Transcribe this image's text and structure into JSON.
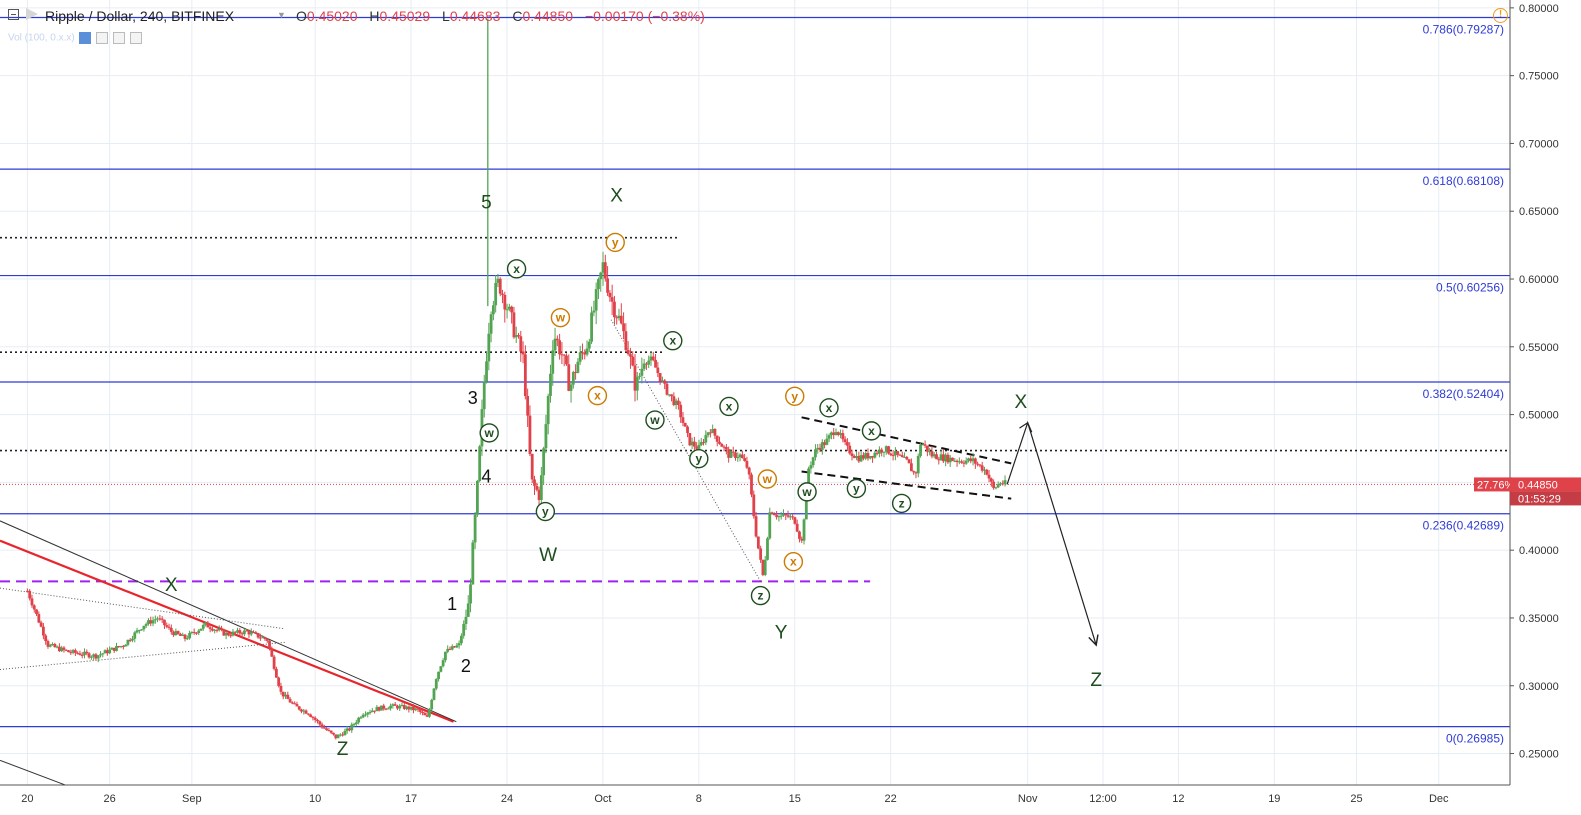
{
  "header": {
    "symbol": "Ripple / Dollar, 240, BITFINEX",
    "open_label": "O",
    "open": "0.45020",
    "high_label": "H",
    "high": "0.45029",
    "low_label": "L",
    "low": "0.44683",
    "close_label": "C",
    "close": "0.44850",
    "change": "−0.00170 (−0.38%)"
  },
  "indicator": {
    "text": "Vol (100, 0.x.x)"
  },
  "colors": {
    "up": "#52a352",
    "down": "#e0424a",
    "fib": "#2f3bd6",
    "trend_red": "#e8252d",
    "support_purple": "#a020f0",
    "wave_green": "#1e4d1e",
    "wave_orange": "#cc7a00",
    "grid": "#e6edf3",
    "price_tag": "#e0424a"
  },
  "price_tags": {
    "current": "0.44850",
    "percent": "27.76%",
    "countdown": "01:53:29"
  },
  "chart_data": {
    "type": "candlestick",
    "symbol": "XRPUSD",
    "interval": "240",
    "exchange": "BITFINEX",
    "y_axis": {
      "range": [
        0.2268,
        0.8058
      ],
      "ticks": [
        "0.80000",
        "0.75000",
        "0.70000",
        "0.65000",
        "0.60000",
        "0.55000",
        "0.50000",
        "0.45000",
        "0.40000",
        "0.35000",
        "0.30000",
        "0.25000"
      ],
      "tick_values": [
        0.8,
        0.75,
        0.7,
        0.65,
        0.6,
        0.55,
        0.5,
        0.45,
        0.4,
        0.35,
        0.3,
        0.25
      ]
    },
    "x_axis": {
      "ticks": [
        {
          "label": "20",
          "t": 0
        },
        {
          "label": "26",
          "t": 6
        },
        {
          "label": "Sep",
          "t": 12
        },
        {
          "label": "10",
          "t": 21
        },
        {
          "label": "17",
          "t": 28
        },
        {
          "label": "24",
          "t": 35
        },
        {
          "label": "Oct",
          "t": 42
        },
        {
          "label": "8",
          "t": 49
        },
        {
          "label": "15",
          "t": 56
        },
        {
          "label": "22",
          "t": 63
        },
        {
          "label": "Nov",
          "t": 73
        },
        {
          "label": "12:00",
          "t": 78.5
        },
        {
          "label": "12",
          "t": 84
        },
        {
          "label": "19",
          "t": 91
        },
        {
          "label": "25",
          "t": 97
        },
        {
          "label": "Dec",
          "t": 103
        }
      ],
      "t_range": [
        -2,
        108.2
      ]
    },
    "price_path": [
      [
        0,
        0.37
      ],
      [
        1.5,
        0.33
      ],
      [
        3,
        0.325
      ],
      [
        5,
        0.322
      ],
      [
        7,
        0.33
      ],
      [
        8.5,
        0.345
      ],
      [
        9.5,
        0.35
      ],
      [
        10.5,
        0.34
      ],
      [
        11.5,
        0.335
      ],
      [
        13,
        0.345
      ],
      [
        14.5,
        0.338
      ],
      [
        16,
        0.34
      ],
      [
        17.5,
        0.334
      ],
      [
        18.5,
        0.295
      ],
      [
        19.5,
        0.285
      ],
      [
        20.5,
        0.28
      ],
      [
        21.5,
        0.27
      ],
      [
        22.5,
        0.262
      ],
      [
        23.5,
        0.268
      ],
      [
        24.5,
        0.28
      ],
      [
        25.5,
        0.283
      ],
      [
        26.5,
        0.285
      ],
      [
        27.5,
        0.284
      ],
      [
        28.5,
        0.282
      ],
      [
        29.2,
        0.276
      ],
      [
        29.8,
        0.305
      ],
      [
        30.5,
        0.325
      ],
      [
        31.5,
        0.33
      ],
      [
        32.2,
        0.36
      ],
      [
        32.8,
        0.44
      ],
      [
        33.3,
        0.52
      ],
      [
        33.8,
        0.58
      ],
      [
        34.4,
        0.598
      ],
      [
        35.0,
        0.58
      ],
      [
        35.6,
        0.56
      ],
      [
        36.2,
        0.54
      ],
      [
        36.8,
        0.45
      ],
      [
        37.4,
        0.44
      ],
      [
        37.9,
        0.5
      ],
      [
        38.4,
        0.56
      ],
      [
        39.0,
        0.545
      ],
      [
        39.6,
        0.52
      ],
      [
        40.2,
        0.54
      ],
      [
        40.8,
        0.55
      ],
      [
        41.4,
        0.58
      ],
      [
        42.0,
        0.61
      ],
      [
        42.6,
        0.585
      ],
      [
        43.2,
        0.57
      ],
      [
        43.8,
        0.55
      ],
      [
        44.4,
        0.52
      ],
      [
        45.0,
        0.54
      ],
      [
        45.6,
        0.54
      ],
      [
        46.5,
        0.52
      ],
      [
        47.5,
        0.505
      ],
      [
        48.3,
        0.48
      ],
      [
        49.0,
        0.475
      ],
      [
        49.8,
        0.49
      ],
      [
        50.5,
        0.48
      ],
      [
        51.2,
        0.47
      ],
      [
        52.0,
        0.47
      ],
      [
        52.6,
        0.46
      ],
      [
        53.2,
        0.41
      ],
      [
        53.7,
        0.38
      ],
      [
        54.2,
        0.43
      ],
      [
        54.8,
        0.425
      ],
      [
        55.5,
        0.425
      ],
      [
        56.0,
        0.422
      ],
      [
        56.5,
        0.405
      ],
      [
        57.0,
        0.46
      ],
      [
        57.6,
        0.475
      ],
      [
        58.3,
        0.48
      ],
      [
        59.0,
        0.49
      ],
      [
        59.8,
        0.475
      ],
      [
        60.6,
        0.468
      ],
      [
        61.5,
        0.47
      ],
      [
        62.5,
        0.475
      ],
      [
        63.4,
        0.47
      ],
      [
        64.2,
        0.465
      ],
      [
        64.8,
        0.455
      ],
      [
        65.2,
        0.48
      ],
      [
        66.0,
        0.47
      ],
      [
        67.0,
        0.468
      ],
      [
        68.0,
        0.466
      ],
      [
        69.0,
        0.466
      ],
      [
        70.0,
        0.458
      ],
      [
        70.5,
        0.445
      ],
      [
        71.0,
        0.45
      ],
      [
        71.5,
        0.4485
      ]
    ],
    "spike": {
      "t": 33.6,
      "high": 0.792
    },
    "fib_levels": [
      {
        "label": "0.786(0.79287)",
        "value": 0.79287
      },
      {
        "label": "0.618(0.68108)",
        "value": 0.68108
      },
      {
        "label": "0.5(0.60256)",
        "value": 0.60256
      },
      {
        "label": "0.382(0.52404)",
        "value": 0.52404
      },
      {
        "label": "0.236(0.42689)",
        "value": 0.42689
      },
      {
        "label": "0(0.26985)",
        "value": 0.26985
      }
    ],
    "dotted_levels": [
      0.6305,
      0.546,
      0.4735
    ],
    "current_price": 0.4485,
    "wave_labels_large": [
      {
        "text": "X",
        "t": 10.5,
        "p": 0.37
      },
      {
        "text": "Z",
        "t": 23.0,
        "p": 0.249
      },
      {
        "text": "5",
        "t": 33.5,
        "p": 0.652
      },
      {
        "text": "X",
        "t": 43.0,
        "p": 0.657
      },
      {
        "text": "W",
        "t": 38.0,
        "p": 0.392
      },
      {
        "text": "Y",
        "t": 55.0,
        "p": 0.335
      },
      {
        "text": "X",
        "t": 72.5,
        "p": 0.505
      },
      {
        "text": "Z",
        "t": 78.0,
        "p": 0.3
      }
    ],
    "wave_labels_numeric": [
      {
        "text": "3",
        "t": 32.5,
        "p": 0.508
      },
      {
        "text": "4",
        "t": 33.5,
        "p": 0.45
      },
      {
        "text": "1",
        "t": 31.0,
        "p": 0.356
      },
      {
        "text": "2",
        "t": 32.0,
        "p": 0.31
      }
    ],
    "circled_labels": [
      {
        "text": "x",
        "t": 35.7,
        "p": 0.6075,
        "color": "green"
      },
      {
        "text": "w",
        "t": 33.7,
        "p": 0.4865,
        "color": "green"
      },
      {
        "text": "y",
        "t": 37.8,
        "p": 0.4285,
        "color": "green"
      },
      {
        "text": "w",
        "t": 38.9,
        "p": 0.5715,
        "color": "orange"
      },
      {
        "text": "x",
        "t": 41.6,
        "p": 0.514,
        "color": "orange"
      },
      {
        "text": "y",
        "t": 42.9,
        "p": 0.627,
        "color": "orange"
      },
      {
        "text": "x",
        "t": 47.1,
        "p": 0.5545,
        "color": "green"
      },
      {
        "text": "w",
        "t": 45.8,
        "p": 0.496,
        "color": "green"
      },
      {
        "text": "x",
        "t": 51.2,
        "p": 0.506,
        "color": "green"
      },
      {
        "text": "y",
        "t": 49.0,
        "p": 0.4675,
        "color": "green"
      },
      {
        "text": "w",
        "t": 54.0,
        "p": 0.4525,
        "color": "orange"
      },
      {
        "text": "z",
        "t": 53.5,
        "p": 0.3665,
        "color": "green"
      },
      {
        "text": "x",
        "t": 55.9,
        "p": 0.3915,
        "color": "orange"
      },
      {
        "text": "y",
        "t": 56.0,
        "p": 0.5135,
        "color": "orange"
      },
      {
        "text": "w",
        "t": 56.9,
        "p": 0.443,
        "color": "green"
      },
      {
        "text": "x",
        "t": 58.5,
        "p": 0.505,
        "color": "green"
      },
      {
        "text": "x",
        "t": 61.6,
        "p": 0.488,
        "color": "green"
      },
      {
        "text": "y",
        "t": 60.5,
        "p": 0.4455,
        "color": "green"
      },
      {
        "text": "z",
        "t": 63.8,
        "p": 0.4345,
        "color": "green"
      }
    ]
  }
}
